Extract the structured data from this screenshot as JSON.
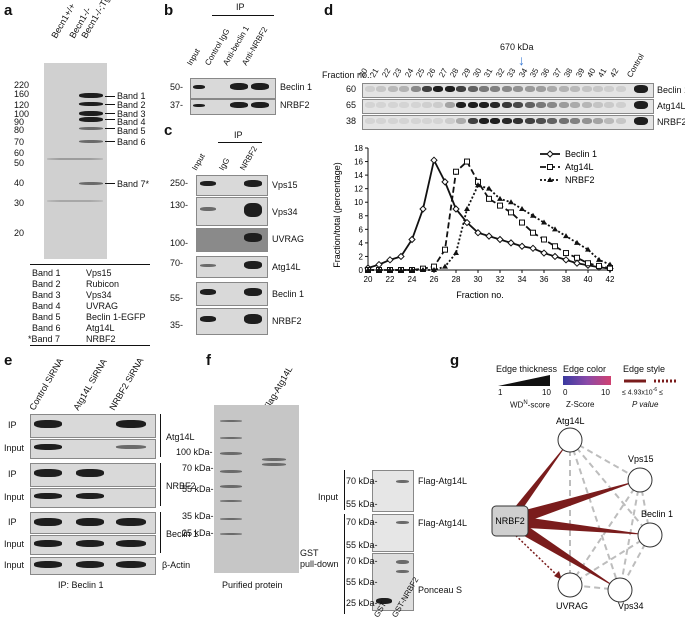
{
  "panels": {
    "a": "a",
    "b": "b",
    "c": "c",
    "d": "d",
    "e": "e",
    "f": "f",
    "g": "g"
  },
  "a": {
    "lanes": [
      "Becn1+/+",
      "Becn1-/-",
      "Becn1-/-;Tg-Becn1"
    ],
    "markers": [
      "220",
      "160",
      "120",
      "100",
      "90",
      "80",
      "70",
      "60",
      "50",
      "40",
      "30",
      "20"
    ],
    "bands": [
      "Band 1",
      "Band 2",
      "Band 3",
      "Band 4",
      "Band 5",
      "Band 6",
      "Band 7*"
    ],
    "table": [
      {
        "band": "Band 1",
        "protein": "Vps15"
      },
      {
        "band": "Band 2",
        "protein": "Rubicon"
      },
      {
        "band": "Band 3",
        "protein": "Vps34"
      },
      {
        "band": "Band 4",
        "protein": "UVRAG"
      },
      {
        "band": "Band 5",
        "protein": "Beclin 1-EGFP"
      },
      {
        "band": "Band 6",
        "protein": "Atg14L"
      },
      {
        "band": "*Band 7",
        "protein": "NRBF2"
      }
    ]
  },
  "b": {
    "ip": "IP",
    "lanes": [
      "Input",
      "Control IgG",
      "Anti-beclin 1",
      "Anti-NRBF2"
    ],
    "rows": [
      {
        "mw": "50-",
        "label": "Beclin 1"
      },
      {
        "mw": "37-",
        "label": "NRBF2"
      }
    ]
  },
  "c": {
    "ip": "IP",
    "lanes": [
      "Input",
      "IgG",
      "NRBF2"
    ],
    "rows": [
      {
        "mw": "250-",
        "label": "Vps15"
      },
      {
        "mw": "130-",
        "label": "Vps34"
      },
      {
        "mw": "100-",
        "label": "UVRAG"
      },
      {
        "mw": "70-",
        "label": "Atg14L"
      },
      {
        "mw": "55-",
        "label": "Beclin 1"
      },
      {
        "mw": "35-",
        "label": "NRBF2"
      }
    ]
  },
  "d": {
    "fraction_label": "Fraction no.:",
    "fractions": [
      "20",
      "21",
      "22",
      "23",
      "24",
      "25",
      "26",
      "27",
      "28",
      "29",
      "30",
      "31",
      "32",
      "33",
      "34",
      "35",
      "36",
      "37",
      "38",
      "39",
      "40",
      "41",
      "42"
    ],
    "control": "Control",
    "marker_kda": "670 kDa",
    "blots": [
      {
        "mw": "60",
        "label": "Beclin 1"
      },
      {
        "mw": "65",
        "label": "Atg14L"
      },
      {
        "mw": "38",
        "label": "NRBF2"
      }
    ]
  },
  "chart_data": {
    "type": "line",
    "xlabel": "Fraction no.",
    "ylabel": "Fraction/total (percentage)",
    "xlim": [
      20,
      42
    ],
    "ylim": [
      0,
      18
    ],
    "xticks": [
      20,
      22,
      24,
      26,
      28,
      30,
      32,
      34,
      36,
      38,
      40,
      42
    ],
    "yticks": [
      0,
      2,
      4,
      6,
      8,
      10,
      12,
      14,
      16,
      18
    ],
    "legend_position": "top-right",
    "x": [
      20,
      21,
      22,
      23,
      24,
      25,
      26,
      27,
      28,
      29,
      30,
      31,
      32,
      33,
      34,
      35,
      36,
      37,
      38,
      39,
      40,
      41,
      42
    ],
    "series": [
      {
        "name": "Beclin 1",
        "marker": "diamond",
        "values": [
          0.3,
          0.8,
          1.5,
          2.0,
          4.5,
          9.0,
          16.2,
          13.0,
          9.0,
          7.0,
          5.5,
          5.0,
          4.5,
          4.0,
          3.5,
          3.2,
          2.5,
          2.0,
          1.5,
          1.0,
          0.7,
          0.4,
          0.2
        ]
      },
      {
        "name": "Atg14L",
        "marker": "square",
        "values": [
          0,
          0,
          0,
          0,
          0,
          0.2,
          0.5,
          3.0,
          14.5,
          16.0,
          13.0,
          10.5,
          9.5,
          8.5,
          7.0,
          5.5,
          4.5,
          3.5,
          2.5,
          1.8,
          1.0,
          0.6,
          0.3
        ]
      },
      {
        "name": "NRBF2",
        "marker": "triangle",
        "values": [
          0,
          0,
          0,
          0,
          0,
          0,
          0,
          0.5,
          2.5,
          9.0,
          12.5,
          12.0,
          10.5,
          10.0,
          9.0,
          8.0,
          7.0,
          6.0,
          5.0,
          4.0,
          3.0,
          1.5,
          0.8
        ]
      }
    ]
  },
  "e": {
    "lanes": [
      "Control SiRNA",
      "Atg14L SiRNA",
      "NRBF2 SiRNA"
    ],
    "rows": [
      "IP",
      "Input",
      "IP",
      "Input",
      "IP",
      "Input",
      "Input"
    ],
    "groups": [
      "Atg14L",
      "NRBF2",
      "Beclin 1"
    ],
    "actin": "β-Actin",
    "footer": "IP:  Beclin 1"
  },
  "f": {
    "lane": "Flag-Atg14L",
    "markers": [
      "100 kDa-",
      "70 kDa-",
      "55 kDa-",
      "35 kDa-",
      "25 kDa-"
    ],
    "caption": "Purified protein",
    "input_label": "Input",
    "pulldown_label": "GST\npull-down",
    "right_blots": [
      {
        "mws": [
          "70 kDa-",
          "55 kDa-"
        ],
        "label": "Flag-Atg14L"
      },
      {
        "mws": [
          "70 kDa-",
          "55 kDa-"
        ],
        "label": "Flag-Atg14L"
      },
      {
        "mws": [
          "70 kDa-",
          "55 kDa-",
          "25 kDa-"
        ],
        "label": "Ponceau S"
      }
    ],
    "lanes": [
      "GST",
      "GST-NRBF2"
    ]
  },
  "g": {
    "legend": {
      "thickness_title": "Edge thickness",
      "thickness_min": "1",
      "thickness_max": "10",
      "thickness_axis": "WD",
      "thickness_axis_sup": "N",
      "thickness_axis_rest": "-score",
      "color_title": "Edge color",
      "color_min": "0",
      "color_max": "10",
      "color_axis": "Z-Score",
      "style_title": "Edge style",
      "style_text": "≤ 4.93x10",
      "style_exp": "-6",
      "style_text2": " ≤",
      "style_axis": "P value"
    },
    "nodes": [
      "NRBF2",
      "Atg14L",
      "Vps15",
      "Beclin 1",
      "Vps34",
      "UVRAG"
    ],
    "colors": {
      "strong": "#7a1c1c",
      "dashed": "#bdbdbd"
    }
  }
}
